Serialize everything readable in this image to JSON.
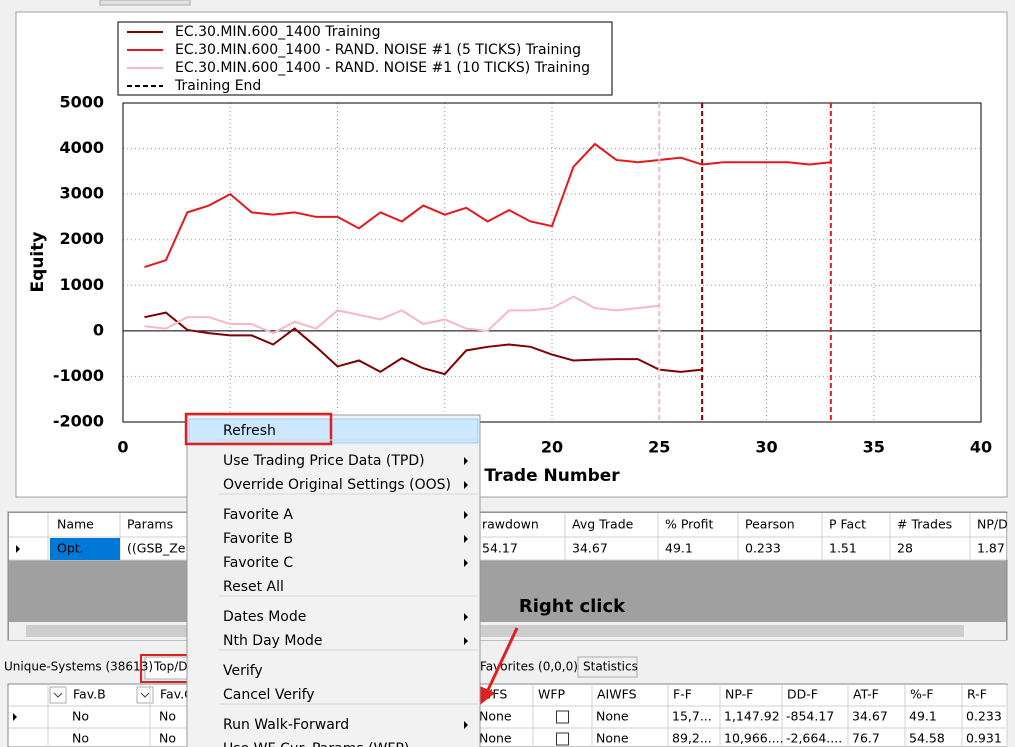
{
  "chart_data": {
    "type": "line",
    "x_label": "Trade Number",
    "y_label": "Equity",
    "xlim": [
      0,
      40
    ],
    "xticks": [
      0,
      5,
      10,
      15,
      20,
      25,
      30,
      35,
      40
    ],
    "ylim": [
      -2000,
      5000
    ],
    "yticks": [
      -2000,
      -1000,
      0,
      1000,
      2000,
      3000,
      4000,
      5000
    ],
    "grid": true,
    "series": [
      {
        "name": "EC.30.MIN.600_1400 Training",
        "color": "#7f0000",
        "x": [
          1,
          2,
          3,
          4,
          5,
          6,
          7,
          8,
          9,
          10,
          11,
          12,
          13,
          14,
          15,
          16,
          17,
          18,
          19,
          20,
          21,
          22,
          23,
          24,
          25,
          26,
          27
        ],
        "values": [
          300,
          400,
          20,
          -50,
          -100,
          -100,
          -300,
          50,
          -350,
          -780,
          -650,
          -900,
          -600,
          -820,
          -950,
          -430,
          -350,
          -300,
          -350,
          -520,
          -650,
          -630,
          -620,
          -620,
          -850,
          -900,
          -850
        ],
        "training_end": 27
      },
      {
        "name": "EC.30.MIN.600_1400 - RAND. NOISE #1 (5 TICKS) Training",
        "color": "#e8171c",
        "x": [
          1,
          2,
          3,
          4,
          5,
          6,
          7,
          8,
          9,
          10,
          11,
          12,
          13,
          14,
          15,
          16,
          17,
          18,
          19,
          20,
          21,
          22,
          23,
          24,
          25,
          26,
          27,
          28,
          29,
          30,
          31,
          32,
          33
        ],
        "values": [
          1400,
          1550,
          2600,
          2750,
          3000,
          2600,
          2550,
          2600,
          2500,
          2500,
          2250,
          2600,
          2400,
          2750,
          2550,
          2700,
          2400,
          2650,
          2400,
          2300,
          3600,
          4100,
          3750,
          3700,
          3750,
          3800,
          3650,
          3700,
          3700,
          3700,
          3700,
          3650,
          3700
        ],
        "training_end": 33
      },
      {
        "name": "EC.30.MIN.600_1400 - RAND. NOISE #1 (10 TICKS) Training",
        "color": "#f7b8c4",
        "x": [
          1,
          2,
          3,
          4,
          5,
          6,
          7,
          8,
          9,
          10,
          11,
          12,
          13,
          14,
          15,
          16,
          17,
          18,
          19,
          20,
          21,
          22,
          23,
          24,
          25
        ],
        "values": [
          100,
          50,
          300,
          300,
          150,
          150,
          -50,
          200,
          50,
          450,
          350,
          250,
          450,
          150,
          250,
          50,
          0,
          450,
          450,
          500,
          750,
          500,
          450,
          500,
          550
        ],
        "training_end": 25
      }
    ],
    "training_end_label": "Training End"
  },
  "context_menu": {
    "groups": [
      [
        {
          "label": "Refresh",
          "state": "highlighted"
        }
      ],
      [
        {
          "label": "Use Trading Price Data (TPD)",
          "submenu": true
        },
        {
          "label": "Override Original Settings (OOS)",
          "submenu": true
        }
      ],
      [
        {
          "label": "Favorite A",
          "submenu": true
        },
        {
          "label": "Favorite B",
          "submenu": true
        },
        {
          "label": "Favorite C",
          "submenu": true
        },
        {
          "label": "Reset All"
        }
      ],
      [
        {
          "label": "Dates Mode",
          "submenu": true
        },
        {
          "label": "Nth Day Mode",
          "submenu": true
        }
      ],
      [
        {
          "label": "Verify"
        },
        {
          "label": "Cancel Verify",
          "state": "disabled"
        }
      ],
      [
        {
          "label": "Run Walk-Forward",
          "submenu": true
        },
        {
          "label": "Use WF Cur. Params (WFP)"
        }
      ]
    ]
  },
  "results_grid": {
    "columns": [
      "Name",
      "Params",
      "rawdown",
      "Avg Trade",
      "% Profit",
      "Pearson",
      "P Fact",
      "# Trades",
      "NP/D"
    ],
    "rows": [
      [
        "Opt.",
        "((GSB_Zer",
        "54.17",
        "34.67",
        "49.1",
        "0.233",
        "1.51",
        "28",
        "1.87"
      ]
    ],
    "red_columns": [
      2
    ]
  },
  "tabs": [
    "Unique-Systems (38613)",
    "Top/D",
    "Favorites (0,0,0)",
    "Statistics"
  ],
  "bottom_grid": {
    "columns": [
      "Fav.B",
      "Fav.C",
      "WFS",
      "WFP",
      "AIWFS",
      "F-F",
      "NP-F",
      "DD-F",
      "AT-F",
      "%-F",
      "R-F"
    ],
    "rows": [
      [
        "No",
        "No",
        "None",
        false,
        "None",
        "15,7...",
        "1,147.92",
        "-854.17",
        "34.67",
        "49.1",
        "0.233"
      ],
      [
        "No",
        "No",
        "None",
        false,
        "None",
        "89,2...",
        "10,966....",
        "-2,664....",
        "76.7",
        "54.58",
        "0.931"
      ]
    ],
    "red_columns": [
      7
    ]
  },
  "annotation": "Right click"
}
